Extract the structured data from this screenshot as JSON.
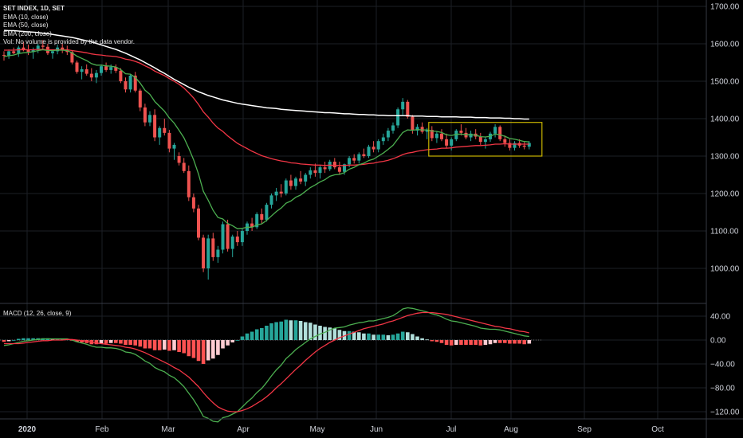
{
  "legend": {
    "symbol": "SET INDEX, 1D, SET",
    "ema10": "EMA (10, close)",
    "ema50": "EMA (50, close)",
    "ema200": "EMA (200, close)",
    "vol": "Vol: No volume is provided by the data vendor."
  },
  "macd_legend": "MACD (12, 26, close, 9)",
  "colors": {
    "background": "#000000",
    "up": "#26a69a",
    "down": "#ef5350",
    "ema10": "#4caf50",
    "ema50": "#f23645",
    "ema200": "#ffffff",
    "hist_pos_strong": "#26a69a",
    "hist_pos_weak": "#b2dfdb",
    "hist_neg_strong": "#ff5252",
    "hist_neg_weak": "#ffcdd2",
    "box": "#c8b400",
    "grid": "#1c1f26"
  },
  "chart_data": {
    "type": "candlestick",
    "price_axis": {
      "ticks": [
        1700,
        1600,
        1500,
        1400,
        1300,
        1200,
        1100,
        1000
      ],
      "labels": [
        "1700.00",
        "1600.00",
        "1500.00",
        "1400.00",
        "1300.00",
        "1200.00",
        "1100.00",
        "1000.00"
      ]
    },
    "macd_axis": {
      "ticks": [
        40,
        0,
        -40,
        -80,
        -120
      ],
      "labels": [
        "40.00",
        "0.00",
        "−40.00",
        "−80.00",
        "−120.00"
      ]
    },
    "time_axis": {
      "labels": [
        "2020",
        "Feb",
        "Mar",
        "Apr",
        "May",
        "Jun",
        "Jul",
        "Aug",
        "Sep",
        "Oct"
      ]
    },
    "ohlc_key": [
      "open",
      "high",
      "low",
      "close"
    ],
    "candles": [
      [
        1570,
        1580,
        1555,
        1568
      ],
      [
        1568,
        1585,
        1560,
        1580
      ],
      [
        1580,
        1590,
        1572,
        1575
      ],
      [
        1575,
        1595,
        1565,
        1590
      ],
      [
        1590,
        1605,
        1580,
        1585
      ],
      [
        1585,
        1598,
        1570,
        1578
      ],
      [
        1578,
        1590,
        1560,
        1585
      ],
      [
        1585,
        1600,
        1575,
        1595
      ],
      [
        1595,
        1610,
        1585,
        1592
      ],
      [
        1592,
        1600,
        1570,
        1575
      ],
      [
        1575,
        1585,
        1560,
        1580
      ],
      [
        1580,
        1598,
        1572,
        1590
      ],
      [
        1590,
        1600,
        1575,
        1585
      ],
      [
        1585,
        1595,
        1570,
        1578
      ],
      [
        1578,
        1582,
        1545,
        1550
      ],
      [
        1550,
        1555,
        1520,
        1525
      ],
      [
        1525,
        1540,
        1505,
        1532
      ],
      [
        1532,
        1545,
        1515,
        1520
      ],
      [
        1520,
        1535,
        1500,
        1510
      ],
      [
        1510,
        1530,
        1495,
        1522
      ],
      [
        1522,
        1545,
        1515,
        1540
      ],
      [
        1540,
        1550,
        1525,
        1530
      ],
      [
        1530,
        1545,
        1520,
        1538
      ],
      [
        1538,
        1545,
        1522,
        1528
      ],
      [
        1528,
        1535,
        1495,
        1500
      ],
      [
        1500,
        1510,
        1470,
        1478
      ],
      [
        1478,
        1520,
        1470,
        1515
      ],
      [
        1515,
        1525,
        1470,
        1475
      ],
      [
        1475,
        1480,
        1420,
        1430
      ],
      [
        1430,
        1440,
        1380,
        1390
      ],
      [
        1390,
        1420,
        1380,
        1410
      ],
      [
        1410,
        1425,
        1340,
        1350
      ],
      [
        1350,
        1380,
        1330,
        1375
      ],
      [
        1375,
        1400,
        1355,
        1362
      ],
      [
        1362,
        1370,
        1310,
        1320
      ],
      [
        1320,
        1335,
        1290,
        1330
      ],
      [
        1300,
        1310,
        1275,
        1282
      ],
      [
        1282,
        1295,
        1255,
        1260
      ],
      [
        1260,
        1275,
        1180,
        1190
      ],
      [
        1190,
        1200,
        1150,
        1160
      ],
      [
        1160,
        1170,
        1075,
        1082
      ],
      [
        1082,
        1090,
        990,
        1000
      ],
      [
        1000,
        1090,
        970,
        1080
      ],
      [
        1080,
        1095,
        1020,
        1030
      ],
      [
        1030,
        1060,
        1015,
        1050
      ],
      [
        1050,
        1125,
        1040,
        1118
      ],
      [
        1118,
        1130,
        1045,
        1052
      ],
      [
        1052,
        1090,
        1030,
        1085
      ],
      [
        1085,
        1100,
        1060,
        1070
      ],
      [
        1070,
        1105,
        1060,
        1100
      ],
      [
        1100,
        1125,
        1090,
        1120
      ],
      [
        1120,
        1135,
        1100,
        1110
      ],
      [
        1110,
        1150,
        1105,
        1145
      ],
      [
        1145,
        1160,
        1120,
        1130
      ],
      [
        1130,
        1175,
        1125,
        1170
      ],
      [
        1170,
        1200,
        1160,
        1195
      ],
      [
        1195,
        1215,
        1180,
        1205
      ],
      [
        1205,
        1225,
        1190,
        1200
      ],
      [
        1200,
        1240,
        1195,
        1235
      ],
      [
        1235,
        1250,
        1210,
        1220
      ],
      [
        1220,
        1245,
        1210,
        1240
      ],
      [
        1240,
        1260,
        1225,
        1232
      ],
      [
        1232,
        1255,
        1220,
        1250
      ],
      [
        1250,
        1270,
        1240,
        1262
      ],
      [
        1262,
        1280,
        1245,
        1255
      ],
      [
        1255,
        1275,
        1240,
        1270
      ],
      [
        1270,
        1285,
        1255,
        1265
      ],
      [
        1265,
        1290,
        1260,
        1285
      ],
      [
        1285,
        1295,
        1265,
        1270
      ],
      [
        1270,
        1285,
        1250,
        1258
      ],
      [
        1258,
        1280,
        1250,
        1278
      ],
      [
        1278,
        1300,
        1270,
        1295
      ],
      [
        1295,
        1305,
        1280,
        1288
      ],
      [
        1288,
        1310,
        1280,
        1305
      ],
      [
        1305,
        1320,
        1295,
        1300
      ],
      [
        1300,
        1330,
        1295,
        1325
      ],
      [
        1325,
        1340,
        1310,
        1318
      ],
      [
        1318,
        1345,
        1310,
        1340
      ],
      [
        1340,
        1360,
        1330,
        1350
      ],
      [
        1350,
        1375,
        1340,
        1368
      ],
      [
        1368,
        1390,
        1360,
        1382
      ],
      [
        1382,
        1430,
        1375,
        1425
      ],
      [
        1425,
        1455,
        1410,
        1445
      ],
      [
        1445,
        1450,
        1400,
        1405
      ],
      [
        1405,
        1410,
        1360,
        1368
      ],
      [
        1368,
        1385,
        1355,
        1378
      ],
      [
        1378,
        1390,
        1360,
        1365
      ],
      [
        1365,
        1375,
        1345,
        1370
      ],
      [
        1370,
        1380,
        1340,
        1348
      ],
      [
        1348,
        1365,
        1335,
        1360
      ],
      [
        1360,
        1372,
        1340,
        1345
      ],
      [
        1345,
        1360,
        1320,
        1328
      ],
      [
        1328,
        1350,
        1315,
        1345
      ],
      [
        1345,
        1372,
        1340,
        1368
      ],
      [
        1368,
        1385,
        1355,
        1362
      ],
      [
        1362,
        1375,
        1345,
        1350
      ],
      [
        1350,
        1368,
        1340,
        1360
      ],
      [
        1360,
        1372,
        1345,
        1352
      ],
      [
        1352,
        1362,
        1330,
        1338
      ],
      [
        1338,
        1350,
        1320,
        1345
      ],
      [
        1345,
        1365,
        1338,
        1360
      ],
      [
        1360,
        1385,
        1350,
        1378
      ],
      [
        1378,
        1382,
        1340,
        1345
      ],
      [
        1345,
        1355,
        1325,
        1335
      ],
      [
        1335,
        1345,
        1315,
        1322
      ],
      [
        1322,
        1340,
        1315,
        1335
      ],
      [
        1335,
        1345,
        1322,
        1328
      ],
      [
        1328,
        1338,
        1318,
        1325
      ],
      [
        1325,
        1340,
        1318,
        1335
      ]
    ],
    "ema10": [
      1566,
      1568,
      1570,
      1574,
      1576,
      1577,
      1579,
      1582,
      1584,
      1582,
      1582,
      1583,
      1583,
      1582,
      1576,
      1567,
      1561,
      1555,
      1547,
      1543,
      1543,
      1541,
      1540,
      1538,
      1531,
      1520,
      1519,
      1510,
      1495,
      1476,
      1465,
      1446,
      1433,
      1420,
      1402,
      1388,
      1369,
      1349,
      1321,
      1290,
      1252,
      1206,
      1182,
      1155,
      1136,
      1132,
      1120,
      1114,
      1106,
      1107,
      1110,
      1110,
      1116,
      1119,
      1128,
      1140,
      1152,
      1161,
      1174,
      1180,
      1190,
      1196,
      1206,
      1216,
      1223,
      1231,
      1237,
      1246,
      1250,
      1251,
      1256,
      1265,
      1270,
      1277,
      1281,
      1288,
      1292,
      1300,
      1308,
      1318,
      1329,
      1346,
      1363,
      1370,
      1369,
      1371,
      1370,
      1370,
      1367,
      1366,
      1363,
      1357,
      1355,
      1358,
      1359,
      1357,
      1357,
      1356,
      1352,
      1351,
      1353,
      1359,
      1357,
      1353,
      1347,
      1345,
      1342,
      1339,
      1338
    ],
    "ema50": [
      1583,
      1583,
      1583,
      1584,
      1584,
      1584,
      1584,
      1585,
      1585,
      1584,
      1584,
      1584,
      1584,
      1584,
      1582,
      1580,
      1578,
      1576,
      1573,
      1571,
      1570,
      1568,
      1567,
      1566,
      1563,
      1559,
      1557,
      1553,
      1548,
      1541,
      1535,
      1527,
      1521,
      1515,
      1507,
      1500,
      1492,
      1482,
      1469,
      1455,
      1438,
      1418,
      1404,
      1388,
      1375,
      1366,
      1354,
      1344,
      1334,
      1327,
      1320,
      1313,
      1307,
      1301,
      1297,
      1293,
      1290,
      1287,
      1285,
      1282,
      1281,
      1279,
      1278,
      1277,
      1276,
      1276,
      1275,
      1276,
      1275,
      1275,
      1275,
      1276,
      1276,
      1277,
      1278,
      1280,
      1281,
      1284,
      1286,
      1289,
      1293,
      1298,
      1304,
      1308,
      1310,
      1313,
      1315,
      1317,
      1318,
      1319,
      1321,
      1321,
      1322,
      1324,
      1325,
      1326,
      1327,
      1328,
      1328,
      1329,
      1330,
      1332,
      1332,
      1333,
      1332,
      1332,
      1332,
      1332,
      1332
    ],
    "ema200": [
      1636,
      1635,
      1635,
      1634,
      1633,
      1632,
      1631,
      1630,
      1628,
      1627,
      1625,
      1623,
      1621,
      1619,
      1617,
      1614,
      1611,
      1608,
      1605,
      1601,
      1597,
      1593,
      1589,
      1585,
      1580,
      1575,
      1569,
      1563,
      1557,
      1550,
      1543,
      1536,
      1528,
      1521,
      1513,
      1505,
      1498,
      1491,
      1484,
      1478,
      1472,
      1467,
      1462,
      1458,
      1454,
      1450,
      1447,
      1444,
      1441,
      1439,
      1437,
      1435,
      1433,
      1431,
      1429,
      1428,
      1427,
      1425,
      1424,
      1423,
      1422,
      1421,
      1420,
      1419,
      1418,
      1417,
      1416,
      1416,
      1415,
      1414,
      1413,
      1413,
      1412,
      1411,
      1411,
      1410,
      1410,
      1409,
      1409,
      1408,
      1408,
      1408,
      1408,
      1408,
      1407,
      1407,
      1407,
      1406,
      1406,
      1406,
      1405,
      1405,
      1405,
      1405,
      1404,
      1404,
      1404,
      1403,
      1403,
      1403,
      1402,
      1402,
      1402,
      1401,
      1401,
      1400,
      1400,
      1399,
      1399
    ],
    "macd": [
      -9,
      -8,
      -6,
      -4,
      -2,
      -1,
      0,
      1,
      2,
      2,
      2,
      2,
      2,
      2,
      0,
      -3,
      -5,
      -7,
      -10,
      -12,
      -12,
      -13,
      -13,
      -14,
      -16,
      -20,
      -21,
      -24,
      -29,
      -35,
      -39,
      -46,
      -50,
      -53,
      -59,
      -63,
      -70,
      -78,
      -89,
      -100,
      -113,
      -128,
      -131,
      -136,
      -137,
      -130,
      -128,
      -124,
      -120,
      -112,
      -104,
      -97,
      -88,
      -81,
      -71,
      -60,
      -50,
      -42,
      -31,
      -24,
      -16,
      -10,
      -4,
      2,
      6,
      10,
      13,
      17,
      20,
      21,
      22,
      25,
      27,
      29,
      30,
      32,
      32,
      34,
      36,
      38,
      41,
      46,
      52,
      54,
      53,
      51,
      49,
      47,
      44,
      42,
      39,
      35,
      32,
      31,
      29,
      27,
      25,
      23,
      20,
      19,
      18,
      18,
      17,
      15,
      13,
      11,
      9,
      7,
      6
    ],
    "signal": [
      -6,
      -6,
      -6,
      -6,
      -5,
      -4,
      -3,
      -2,
      -1,
      -1,
      0,
      0,
      0,
      1,
      1,
      0,
      -1,
      -2,
      -3,
      -5,
      -6,
      -7,
      -8,
      -9,
      -10,
      -12,
      -13,
      -15,
      -18,
      -21,
      -25,
      -29,
      -33,
      -37,
      -41,
      -46,
      -50,
      -56,
      -62,
      -70,
      -78,
      -88,
      -97,
      -105,
      -112,
      -116,
      -119,
      -120,
      -120,
      -118,
      -115,
      -111,
      -106,
      -101,
      -95,
      -88,
      -80,
      -73,
      -65,
      -57,
      -49,
      -42,
      -34,
      -27,
      -20,
      -14,
      -9,
      -4,
      0,
      4,
      7,
      10,
      13,
      16,
      19,
      21,
      23,
      25,
      27,
      30,
      32,
      35,
      38,
      41,
      43,
      45,
      46,
      46,
      46,
      45,
      44,
      43,
      41,
      39,
      37,
      35,
      33,
      31,
      29,
      27,
      25,
      23,
      22,
      20,
      19,
      17,
      15,
      14,
      12
    ],
    "box": {
      "start_index": 88,
      "end_index": 108,
      "top": 1390,
      "bottom": 1300
    }
  }
}
